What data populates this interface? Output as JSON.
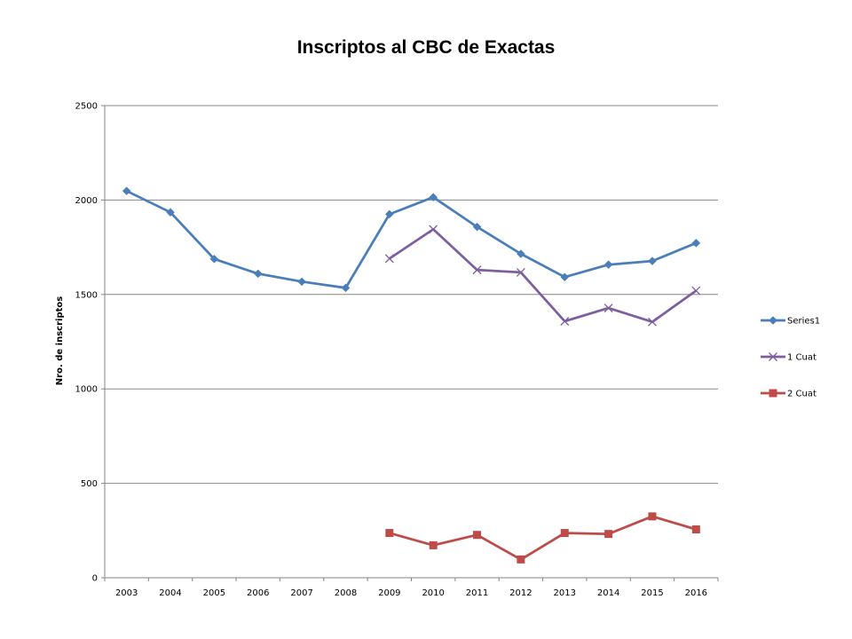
{
  "chart_data": {
    "type": "line",
    "title": "Inscriptos al CBC de Exactas",
    "xlabel": "",
    "ylabel": "Nro. de inscriptos",
    "ylim": [
      0,
      2500
    ],
    "yticks": [
      0,
      500,
      1000,
      1500,
      2000,
      2500
    ],
    "categories": [
      "2003",
      "2004",
      "2005",
      "2006",
      "2007",
      "2008",
      "2009",
      "2010",
      "2011",
      "2012",
      "2013",
      "2014",
      "2015",
      "2016"
    ],
    "grid": "horizontal",
    "legend_position": "right",
    "series": [
      {
        "name": "Series1",
        "color": "#4a7ebb",
        "marker": "diamond",
        "values": [
          2048,
          1935,
          1688,
          1610,
          1568,
          1535,
          1925,
          2015,
          1858,
          1715,
          1592,
          1658,
          1677,
          1772
        ]
      },
      {
        "name": "1 Cuat",
        "color": "#7d5fa0",
        "marker": "x",
        "values": [
          null,
          null,
          null,
          null,
          null,
          null,
          1690,
          1845,
          1630,
          1617,
          1358,
          1428,
          1355,
          1520
        ]
      },
      {
        "name": "2 Cuat",
        "color": "#be4b48",
        "marker": "square",
        "values": [
          null,
          null,
          null,
          null,
          null,
          null,
          237,
          172,
          227,
          97,
          237,
          232,
          325,
          256
        ]
      }
    ]
  }
}
